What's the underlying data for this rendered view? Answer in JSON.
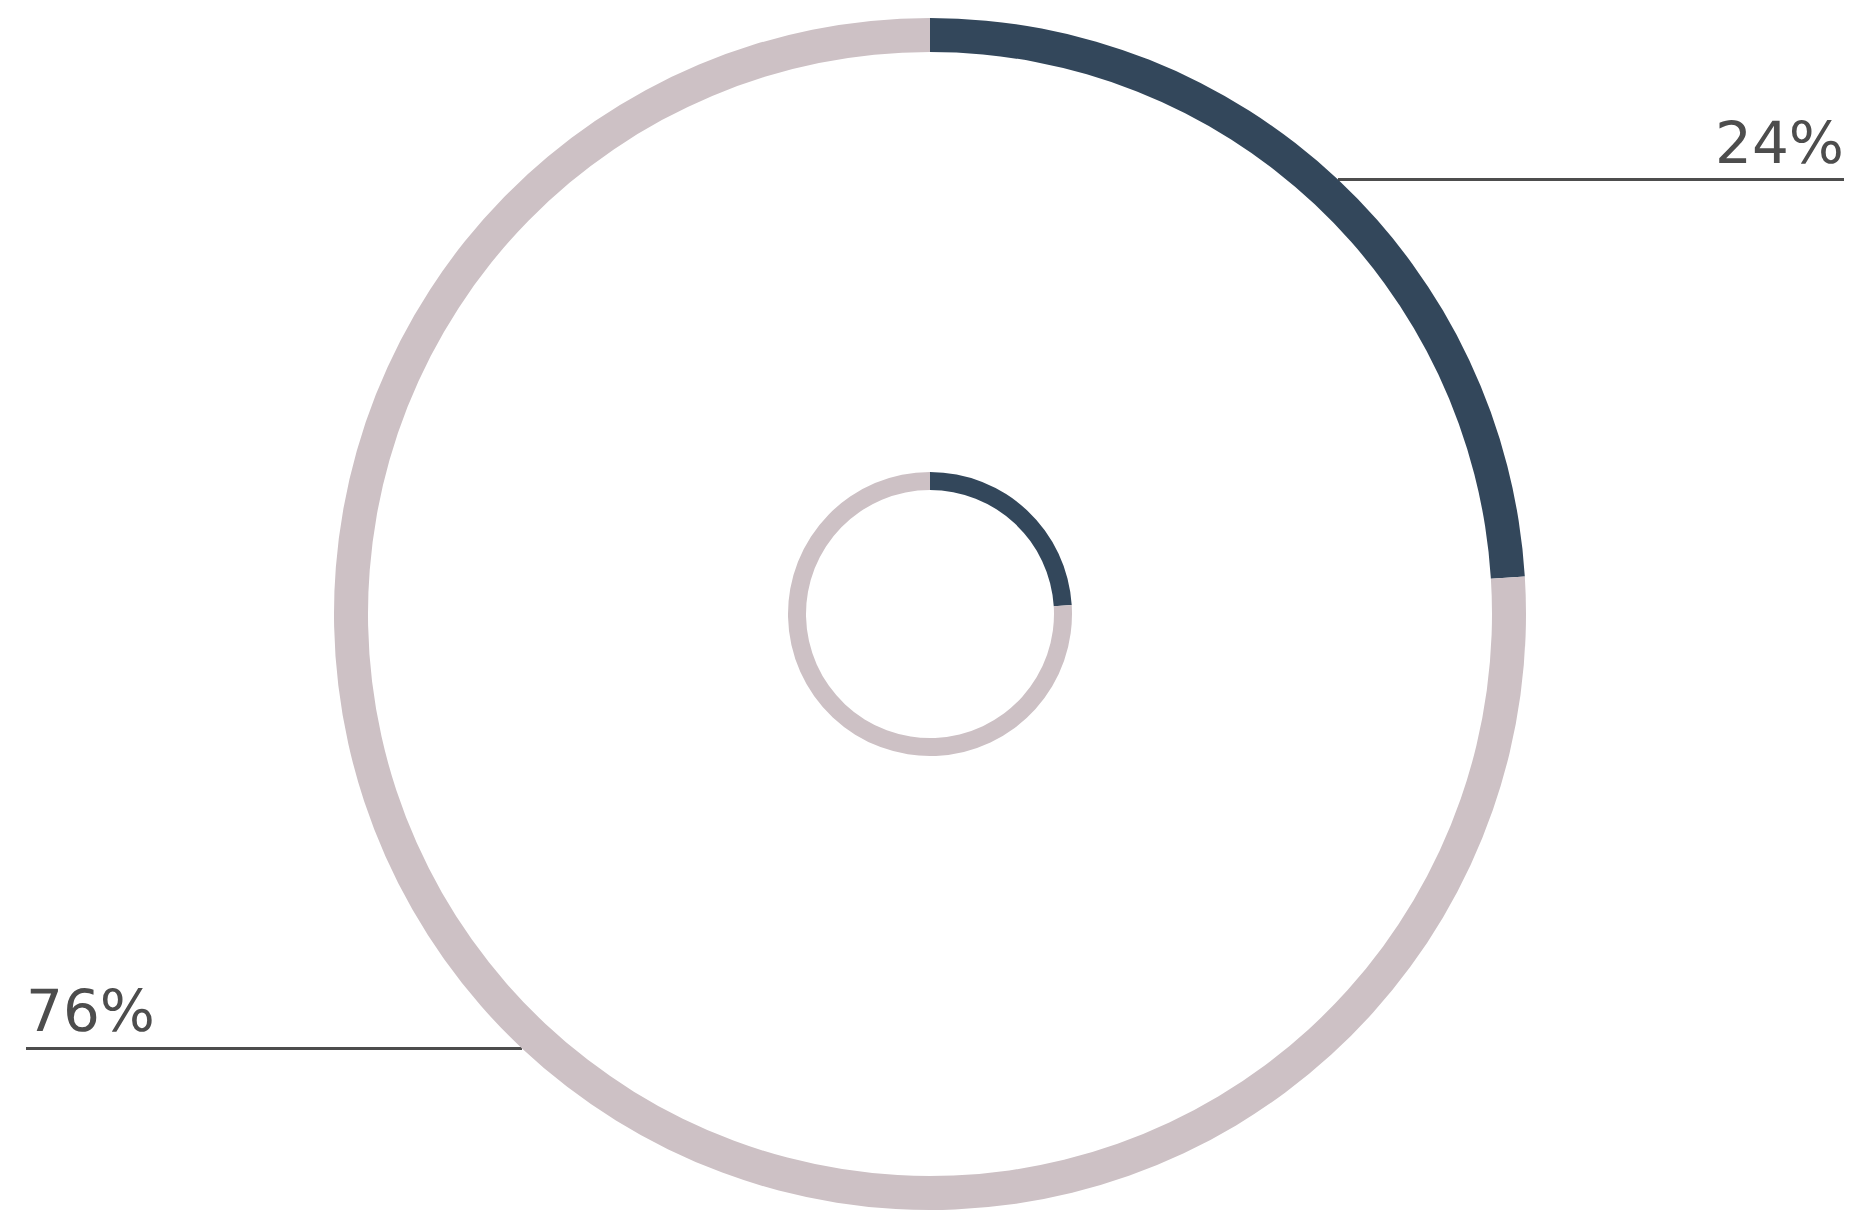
{
  "chart_data": [
    {
      "type": "donut",
      "categories": [
        null,
        null
      ],
      "values": [
        24,
        76
      ],
      "colors": [
        "#33475b",
        "#cdc1c5"
      ],
      "value_labels": [
        "24%",
        "76%"
      ]
    },
    {
      "type": "donut",
      "categories": [
        null,
        null
      ],
      "values": [
        24,
        76
      ],
      "colors": [
        "#33475b",
        "#cdc1c5"
      ]
    }
  ]
}
